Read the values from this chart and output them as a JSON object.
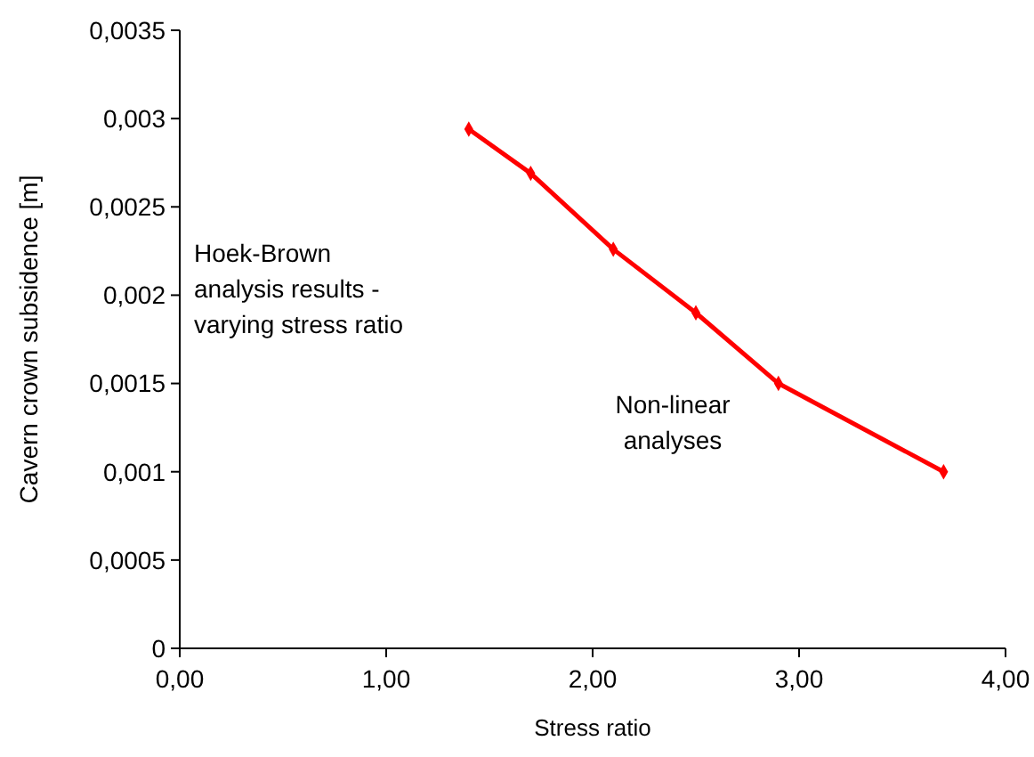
{
  "chart_data": {
    "type": "line",
    "xlabel": "Stress ratio",
    "ylabel": "Cavern crown subsidence [m]",
    "x": [
      1.4,
      1.7,
      2.1,
      2.5,
      2.9,
      3.7
    ],
    "series": [
      {
        "color": "#ff0000",
        "values": [
          0.00294,
          0.00269,
          0.00226,
          0.0019,
          0.0015,
          0.001
        ]
      }
    ],
    "xlim": [
      0,
      4
    ],
    "xticks": [
      {
        "value": 0,
        "label": "0,00"
      },
      {
        "value": 1,
        "label": "1,00"
      },
      {
        "value": 2,
        "label": "2,00"
      },
      {
        "value": 3,
        "label": "3,00"
      },
      {
        "value": 4,
        "label": "4,00"
      }
    ],
    "ylim": [
      0,
      0.0035
    ],
    "yticks": [
      {
        "value": 0,
        "label": "0"
      },
      {
        "value": 0.0005,
        "label": "0,0005"
      },
      {
        "value": 0.001,
        "label": "0,001"
      },
      {
        "value": 0.0015,
        "label": "0,0015"
      },
      {
        "value": 0.002,
        "label": "0,002"
      },
      {
        "value": 0.0025,
        "label": "0,0025"
      },
      {
        "value": 0.003,
        "label": "0,003"
      },
      {
        "value": 0.0035,
        "label": "0,0035"
      }
    ],
    "marker": "diamond",
    "line_style": "solid",
    "grid": false,
    "annotations": [
      "Hoek-Brown\nanalysis results -\nvarying stress ratio",
      "Non-linear\nanalyses"
    ]
  }
}
